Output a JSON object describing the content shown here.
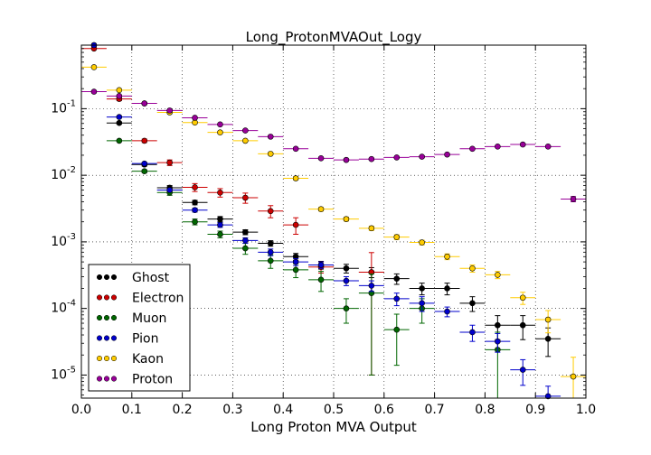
{
  "chart_data": {
    "type": "scatter",
    "title": "Long_ProtonMVAOut_Logy",
    "xlabel": "Long Proton MVA Output",
    "ylabel": "",
    "xlim": [
      0.0,
      1.0
    ],
    "ylim": [
      4.5e-06,
      0.9
    ],
    "yscale": "log",
    "grid": true,
    "legend_position": "lower-left",
    "x_ticks": [
      "0.0",
      "0.1",
      "0.2",
      "0.3",
      "0.4",
      "0.5",
      "0.6",
      "0.7",
      "0.8",
      "0.9",
      "1.0"
    ],
    "y_ticks": [
      {
        "base": "10",
        "exp": "-5",
        "value": 1e-05
      },
      {
        "base": "10",
        "exp": "-4",
        "value": 0.0001
      },
      {
        "base": "10",
        "exp": "-3",
        "value": 0.001
      },
      {
        "base": "10",
        "exp": "-2",
        "value": 0.01
      },
      {
        "base": "10",
        "exp": "-1",
        "value": 0.1
      }
    ],
    "bin_half_width": 0.025,
    "series": [
      {
        "name": "Ghost",
        "color": "#000000",
        "points": [
          {
            "x": 0.025,
            "y": 0.9,
            "yerr": 0
          },
          {
            "x": 0.075,
            "y": 0.061,
            "yerr": 0.002
          },
          {
            "x": 0.125,
            "y": 0.0145,
            "yerr": 0.0008
          },
          {
            "x": 0.175,
            "y": 0.0065,
            "yerr": 0.0005
          },
          {
            "x": 0.225,
            "y": 0.0039,
            "yerr": 0.0003
          },
          {
            "x": 0.275,
            "y": 0.0022,
            "yerr": 0.0002
          },
          {
            "x": 0.325,
            "y": 0.0014,
            "yerr": 0.00012
          },
          {
            "x": 0.375,
            "y": 0.00095,
            "yerr": 9e-05
          },
          {
            "x": 0.425,
            "y": 0.0006,
            "yerr": 7e-05
          },
          {
            "x": 0.475,
            "y": 0.00045,
            "yerr": 6e-05
          },
          {
            "x": 0.525,
            "y": 0.0004,
            "yerr": 6e-05
          },
          {
            "x": 0.575,
            "y": 0.00035,
            "yerr": 6e-05
          },
          {
            "x": 0.625,
            "y": 0.00028,
            "yerr": 5e-05
          },
          {
            "x": 0.675,
            "y": 0.0002,
            "yerr": 4e-05
          },
          {
            "x": 0.725,
            "y": 0.0002,
            "yerr": 4e-05
          },
          {
            "x": 0.775,
            "y": 0.00012,
            "yerr": 3e-05
          },
          {
            "x": 0.825,
            "y": 5.6e-05,
            "yerr": 2.2e-05
          },
          {
            "x": 0.875,
            "y": 5.6e-05,
            "yerr": 2.2e-05
          },
          {
            "x": 0.925,
            "y": 3.5e-05,
            "yerr": 1.6e-05
          }
        ]
      },
      {
        "name": "Electron",
        "color": "#cc0000",
        "points": [
          {
            "x": 0.025,
            "y": 0.8,
            "yerr": 0
          },
          {
            "x": 0.075,
            "y": 0.14,
            "yerr": 0.008
          },
          {
            "x": 0.125,
            "y": 0.033,
            "yerr": 0.002
          },
          {
            "x": 0.175,
            "y": 0.0155,
            "yerr": 0.0015
          },
          {
            "x": 0.225,
            "y": 0.0066,
            "yerr": 0.0009
          },
          {
            "x": 0.275,
            "y": 0.0055,
            "yerr": 0.0008
          },
          {
            "x": 0.325,
            "y": 0.0046,
            "yerr": 0.0008
          },
          {
            "x": 0.375,
            "y": 0.0029,
            "yerr": 0.0006
          },
          {
            "x": 0.425,
            "y": 0.0018,
            "yerr": 0.0005
          },
          {
            "x": 0.475,
            "y": 0.00042,
            "yerr": 8e-05
          },
          {
            "x": 0.575,
            "y": 0.00035,
            "yerr": 0.00034
          }
        ]
      },
      {
        "name": "Muon",
        "color": "#006600",
        "points": [
          {
            "x": 0.075,
            "y": 0.033,
            "yerr": 0.001
          },
          {
            "x": 0.125,
            "y": 0.0115,
            "yerr": 0.0006
          },
          {
            "x": 0.175,
            "y": 0.0055,
            "yerr": 0.0005
          },
          {
            "x": 0.225,
            "y": 0.002,
            "yerr": 0.0002
          },
          {
            "x": 0.275,
            "y": 0.0013,
            "yerr": 0.00015
          },
          {
            "x": 0.325,
            "y": 0.0008,
            "yerr": 0.00015
          },
          {
            "x": 0.375,
            "y": 0.00052,
            "yerr": 0.00012
          },
          {
            "x": 0.425,
            "y": 0.00038,
            "yerr": 9e-05
          },
          {
            "x": 0.475,
            "y": 0.00027,
            "yerr": 9e-05
          },
          {
            "x": 0.525,
            "y": 0.0001,
            "yerr": 4e-05
          },
          {
            "x": 0.575,
            "y": 0.00017,
            "yerr": 0.00016
          },
          {
            "x": 0.625,
            "y": 4.8e-05,
            "yerr": 3.4e-05
          },
          {
            "x": 0.675,
            "y": 0.0001,
            "yerr": 4e-05
          },
          {
            "x": 0.825,
            "y": 2.4e-05,
            "yerr": 2e-05
          }
        ]
      },
      {
        "name": "Pion",
        "color": "#0000cc",
        "points": [
          {
            "x": 0.025,
            "y": 0.9,
            "yerr": 0
          },
          {
            "x": 0.075,
            "y": 0.075,
            "yerr": 0.002
          },
          {
            "x": 0.125,
            "y": 0.015,
            "yerr": 0.0006
          },
          {
            "x": 0.175,
            "y": 0.006,
            "yerr": 0.0003
          },
          {
            "x": 0.225,
            "y": 0.003,
            "yerr": 0.0002
          },
          {
            "x": 0.275,
            "y": 0.0018,
            "yerr": 0.00015
          },
          {
            "x": 0.325,
            "y": 0.00105,
            "yerr": 0.0001
          },
          {
            "x": 0.375,
            "y": 0.0007,
            "yerr": 8e-05
          },
          {
            "x": 0.425,
            "y": 0.0005,
            "yerr": 6e-05
          },
          {
            "x": 0.475,
            "y": 0.00045,
            "yerr": 5e-05
          },
          {
            "x": 0.525,
            "y": 0.00026,
            "yerr": 4e-05
          },
          {
            "x": 0.575,
            "y": 0.00022,
            "yerr": 4e-05
          },
          {
            "x": 0.625,
            "y": 0.00014,
            "yerr": 3e-05
          },
          {
            "x": 0.675,
            "y": 0.00012,
            "yerr": 3e-05
          },
          {
            "x": 0.725,
            "y": 9e-05,
            "yerr": 1.5e-05
          },
          {
            "x": 0.775,
            "y": 4.4e-05,
            "yerr": 1.2e-05
          },
          {
            "x": 0.825,
            "y": 3.2e-05,
            "yerr": 1e-05
          },
          {
            "x": 0.875,
            "y": 1.2e-05,
            "yerr": 5e-06
          },
          {
            "x": 0.925,
            "y": 4.8e-06,
            "yerr": 2e-06
          }
        ]
      },
      {
        "name": "Kaon",
        "color": "#ffcc00",
        "points": [
          {
            "x": 0.025,
            "y": 0.42,
            "yerr": 0
          },
          {
            "x": 0.075,
            "y": 0.19,
            "yerr": 0.006
          },
          {
            "x": 0.125,
            "y": 0.12,
            "yerr": 0.004
          },
          {
            "x": 0.175,
            "y": 0.088,
            "yerr": 0.003
          },
          {
            "x": 0.225,
            "y": 0.062,
            "yerr": 0.002
          },
          {
            "x": 0.275,
            "y": 0.044,
            "yerr": 0.0015
          },
          {
            "x": 0.325,
            "y": 0.033,
            "yerr": 0.001
          },
          {
            "x": 0.375,
            "y": 0.021,
            "yerr": 0.0008
          },
          {
            "x": 0.425,
            "y": 0.009,
            "yerr": 0.0005
          },
          {
            "x": 0.475,
            "y": 0.0031,
            "yerr": 0.0002
          },
          {
            "x": 0.525,
            "y": 0.0022,
            "yerr": 0.00015
          },
          {
            "x": 0.575,
            "y": 0.0016,
            "yerr": 0.00012
          },
          {
            "x": 0.625,
            "y": 0.00118,
            "yerr": 0.0001
          },
          {
            "x": 0.675,
            "y": 0.00098,
            "yerr": 8e-05
          },
          {
            "x": 0.725,
            "y": 0.0006,
            "yerr": 6e-05
          },
          {
            "x": 0.775,
            "y": 0.0004,
            "yerr": 5e-05
          },
          {
            "x": 0.825,
            "y": 0.00032,
            "yerr": 4e-05
          },
          {
            "x": 0.875,
            "y": 0.000145,
            "yerr": 3e-05
          },
          {
            "x": 0.925,
            "y": 6.8e-05,
            "yerr": 2.5e-05
          },
          {
            "x": 0.975,
            "y": 9.5e-06,
            "yerr": 9e-06
          }
        ]
      },
      {
        "name": "Proton",
        "color": "#990099",
        "points": [
          {
            "x": 0.025,
            "y": 0.18,
            "yerr": 0.005
          },
          {
            "x": 0.075,
            "y": 0.155,
            "yerr": 0.004
          },
          {
            "x": 0.125,
            "y": 0.12,
            "yerr": 0.003
          },
          {
            "x": 0.175,
            "y": 0.094,
            "yerr": 0.0025
          },
          {
            "x": 0.225,
            "y": 0.073,
            "yerr": 0.002
          },
          {
            "x": 0.275,
            "y": 0.058,
            "yerr": 0.0015
          },
          {
            "x": 0.325,
            "y": 0.047,
            "yerr": 0.0012
          },
          {
            "x": 0.375,
            "y": 0.038,
            "yerr": 0.001
          },
          {
            "x": 0.425,
            "y": 0.025,
            "yerr": 0.0008
          },
          {
            "x": 0.475,
            "y": 0.018,
            "yerr": 0.0006
          },
          {
            "x": 0.525,
            "y": 0.017,
            "yerr": 0.0006
          },
          {
            "x": 0.575,
            "y": 0.0175,
            "yerr": 0.0006
          },
          {
            "x": 0.625,
            "y": 0.0185,
            "yerr": 0.0006
          },
          {
            "x": 0.675,
            "y": 0.019,
            "yerr": 0.0006
          },
          {
            "x": 0.725,
            "y": 0.0205,
            "yerr": 0.0007
          },
          {
            "x": 0.775,
            "y": 0.025,
            "yerr": 0.0008
          },
          {
            "x": 0.825,
            "y": 0.027,
            "yerr": 0.0008
          },
          {
            "x": 0.875,
            "y": 0.029,
            "yerr": 0.0009
          },
          {
            "x": 0.925,
            "y": 0.027,
            "yerr": 0.0009
          },
          {
            "x": 0.975,
            "y": 0.0044,
            "yerr": 0.0004
          }
        ]
      }
    ]
  }
}
